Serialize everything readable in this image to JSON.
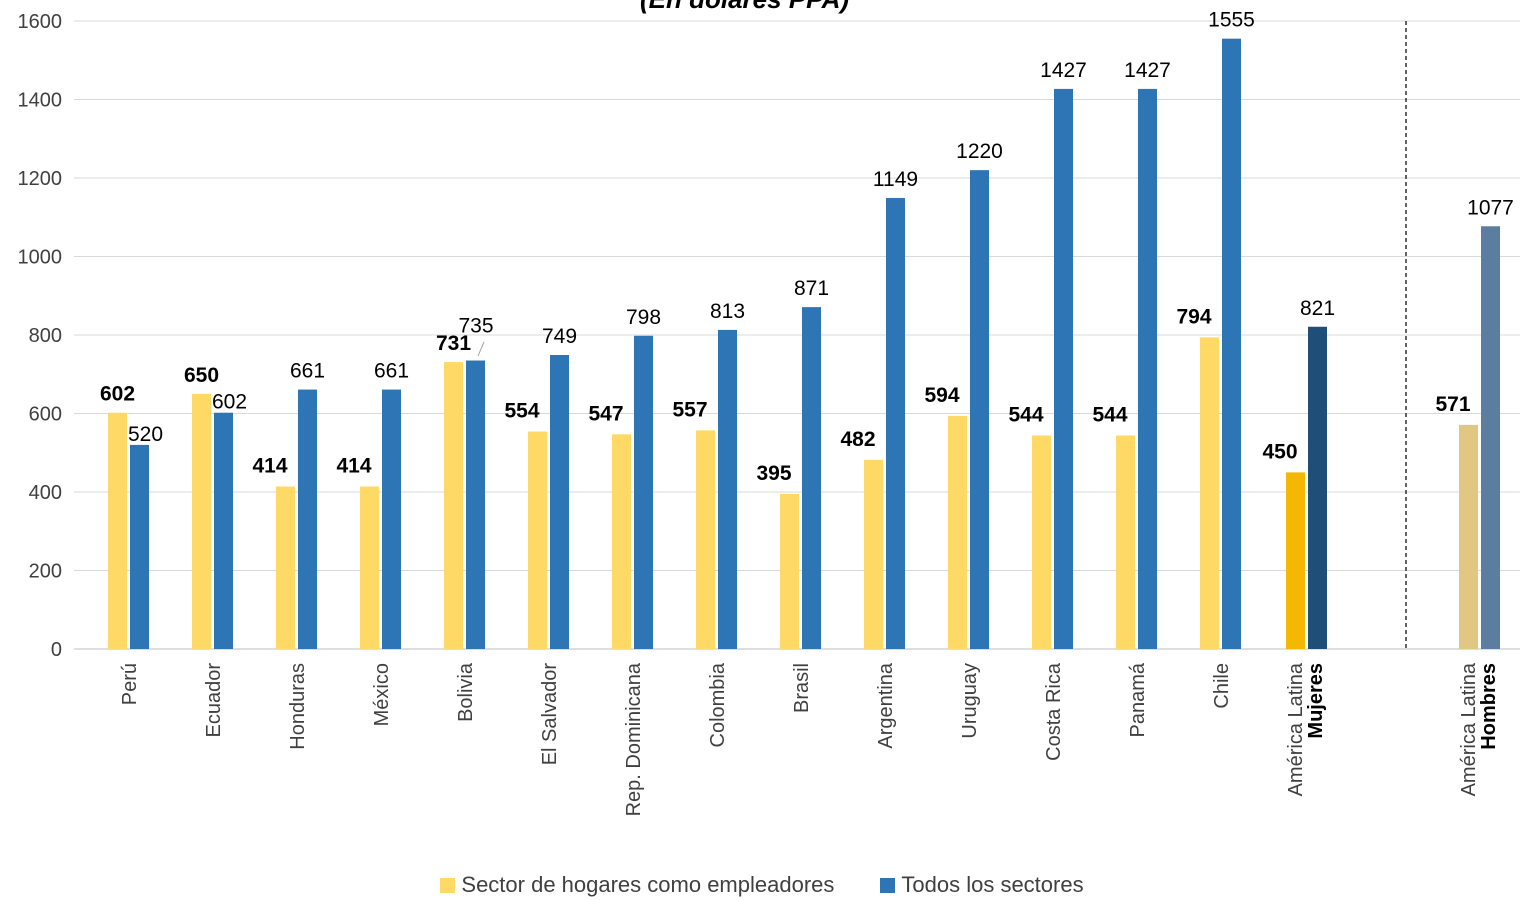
{
  "chart_data": {
    "type": "bar",
    "title": "(En dólares PPA)",
    "categories": [
      "Perú",
      "Ecuador",
      "Honduras",
      "México",
      "Bolivia",
      "El Salvador",
      "Rep. Dominicana",
      "Colombia",
      "Brasil",
      "Argentina",
      "Uruguay",
      "Costa Rica",
      "Panamá",
      "Chile",
      "América Latina",
      "América Latina"
    ],
    "category_sublabels": [
      "",
      "",
      "",
      "",
      "",
      "",
      "",
      "",
      "",
      "",
      "",
      "",
      "",
      "",
      "Mujeres",
      "Hombres"
    ],
    "series": [
      {
        "name": "Sector de hogares como empleadores",
        "color": "#FFD966",
        "values": [
          602,
          650,
          414,
          414,
          731,
          554,
          547,
          557,
          395,
          482,
          594,
          544,
          544,
          794,
          450,
          571
        ]
      },
      {
        "name": "Todos los sectores",
        "color": "#2E75B6",
        "values": [
          520,
          602,
          661,
          661,
          735,
          749,
          798,
          813,
          871,
          1149,
          1220,
          1427,
          1427,
          1555,
          821,
          1077
        ]
      }
    ],
    "highlight_colors": {
      "mujeres_hogares": "#F4B800",
      "mujeres_todos": "#1F4E79",
      "hombres_hogares": "#E0C882",
      "hombres_todos": "#5B7EA0"
    },
    "ylim": [
      0,
      1600
    ],
    "yticks": [
      0,
      200,
      400,
      600,
      800,
      1000,
      1200,
      1400,
      1600
    ],
    "grid": true,
    "legend": "bottom",
    "separator": "dashed line before last category"
  }
}
